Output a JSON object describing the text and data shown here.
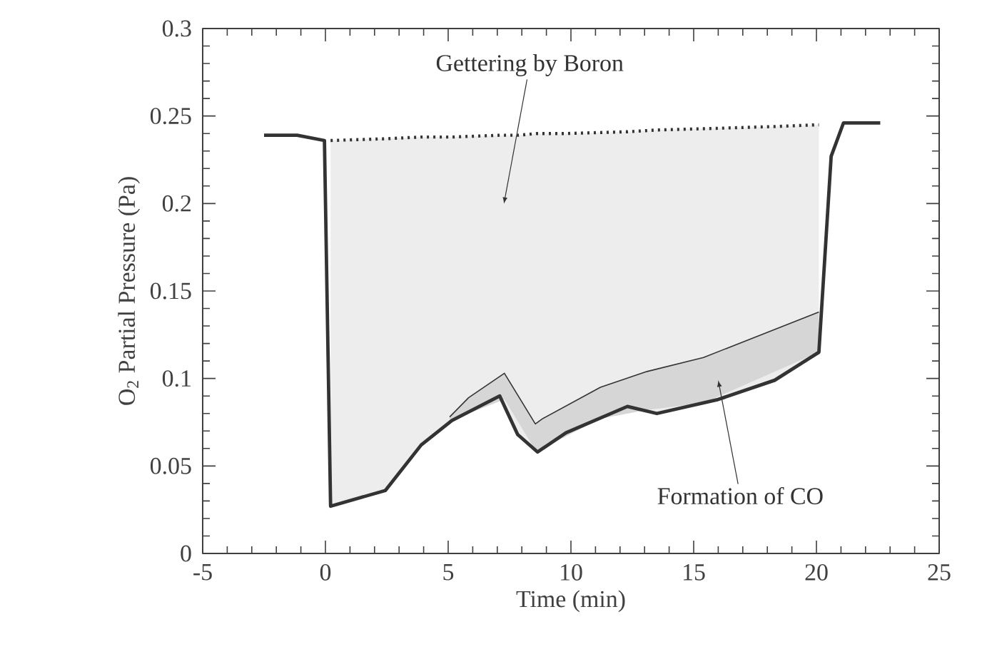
{
  "chart_data": {
    "type": "line",
    "xlabel": "Time (min)",
    "ylabel": "O$_{2}$ Partial Pressure (Pa)",
    "xlim": [
      -5,
      25
    ],
    "ylim": [
      0,
      0.3
    ],
    "xticks": [
      -5,
      0,
      5,
      10,
      15,
      20,
      25
    ],
    "yticks": [
      0,
      0.05,
      0.1,
      0.15,
      0.2,
      0.25,
      0.3
    ],
    "grid": false,
    "marker": "none",
    "series": [
      {
        "color": "#333333",
        "line_style": "solid",
        "x": [
          -2.5,
          -1.15,
          -0.04,
          0.21,
          2.44,
          3.9,
          5.15,
          7.1,
          7.83,
          8.64,
          9.8,
          12.3,
          13.5,
          16.0,
          18.3,
          20.1,
          20.6,
          21.1,
          22.6
        ],
        "values": [
          0.239,
          0.239,
          0.236,
          0.027,
          0.036,
          0.062,
          0.076,
          0.09,
          0.068,
          0.058,
          0.069,
          0.084,
          0.08,
          0.088,
          0.099,
          0.115,
          0.227,
          0.246,
          0.246
        ]
      },
      {
        "color": "#333333",
        "line_style": "solid",
        "x": [
          5.06,
          5.83,
          7.29,
          8.55,
          8.84,
          11.2,
          13.1,
          15.4,
          20.1
        ],
        "values": [
          0.078,
          0.089,
          0.103,
          0.074,
          0.077,
          0.095,
          0.104,
          0.112,
          0.138
        ],
        "lower": [
          0.076,
          0.08,
          0.088,
          0.059,
          0.06,
          0.077,
          0.082,
          0.086,
          0.115
        ],
        "upper": [
          0.078,
          0.089,
          0.103,
          0.074,
          0.077,
          0.095,
          0.104,
          0.112,
          0.138
        ]
      },
      {
        "color": "#333333",
        "line_style": "dotted",
        "x": [
          0.21,
          2.44,
          3.9,
          5.15,
          7.1,
          7.83,
          8.64,
          9.8,
          12.3,
          13.5,
          16.0,
          18.3,
          20.1
        ],
        "values": [
          0.236,
          0.237,
          0.238,
          0.238,
          0.239,
          0.239,
          0.24,
          0.24,
          0.241,
          0.242,
          0.243,
          0.244,
          0.245
        ],
        "lower": [
          0.027,
          0.036,
          0.062,
          0.076,
          0.09,
          0.068,
          0.058,
          0.069,
          0.084,
          0.08,
          0.088,
          0.099,
          0.115
        ],
        "upper": [
          0.236,
          0.237,
          0.238,
          0.238,
          0.239,
          0.239,
          0.24,
          0.24,
          0.241,
          0.242,
          0.243,
          0.244,
          0.245
        ]
      }
    ],
    "annotations": [
      "Gettering by Boron",
      "Formation of CO"
    ]
  }
}
